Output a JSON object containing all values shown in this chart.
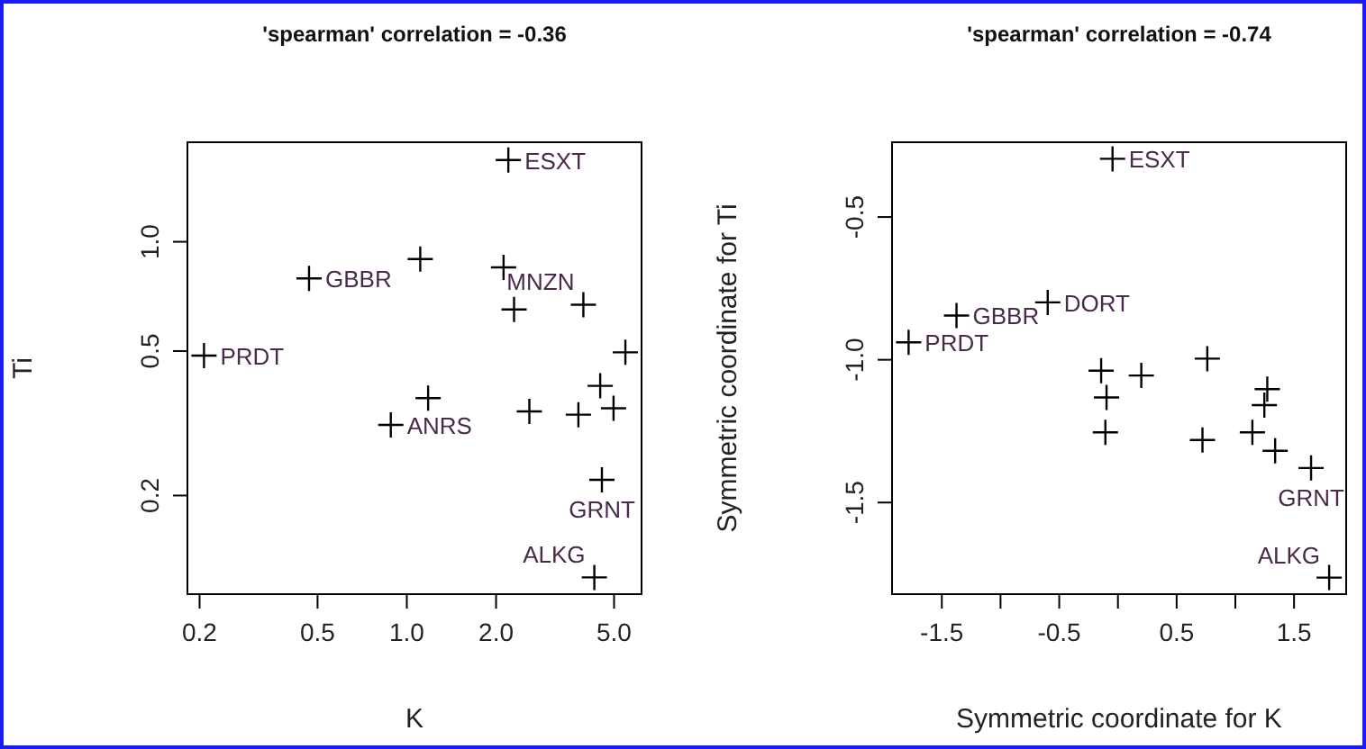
{
  "chart_data": [
    {
      "type": "scatter",
      "title": "'spearman' correlation = -0.36",
      "xlabel": "K",
      "ylabel": "Ti",
      "log": "xy",
      "marker": "cross",
      "color": "#000000",
      "x": [
        2.2,
        0.468,
        1.11,
        2.12,
        2.3,
        3.94,
        0.207,
        5.46,
        1.18,
        0.883,
        2.59,
        3.79,
        4.49,
        4.98,
        4.55,
        4.29
      ],
      "values": [
        1.68,
        0.793,
        0.896,
        0.85,
        0.651,
        0.671,
        0.486,
        0.496,
        0.371,
        0.313,
        0.341,
        0.334,
        0.401,
        0.348,
        0.221,
        0.119
      ],
      "value_labels": [
        "ESXT",
        "GBBR",
        null,
        null,
        null,
        "MNZN",
        "PRDT",
        null,
        null,
        "ANRS",
        null,
        null,
        null,
        null,
        "GRNT",
        "ALKG"
      ],
      "xlim": [
        0.182,
        6.19
      ],
      "ylim": [
        0.107,
        1.88
      ],
      "xticks": [
        {
          "value": 0.2,
          "label": "0.2"
        },
        {
          "value": 0.5,
          "label": "0.5"
        },
        {
          "value": 1,
          "label": "1.0"
        },
        {
          "value": 2,
          "label": "2.0"
        },
        {
          "value": 5,
          "label": "5.0"
        }
      ],
      "yticks": [
        {
          "value": 0.2,
          "label": "0.2"
        },
        {
          "value": 0.5,
          "label": "0.5"
        },
        {
          "value": 1,
          "label": "1.0"
        }
      ]
    },
    {
      "type": "scatter",
      "title": "'spearman' correlation = -0.74",
      "xlabel": "Symmetric coordinate for K",
      "ylabel": "Symmetric coordinate for Ti",
      "marker": "cross",
      "color": "#000000",
      "x": [
        -0.046,
        -1.375,
        -0.598,
        -1.783,
        -0.143,
        -0.097,
        -0.107,
        0.199,
        0.761,
        0.72,
        1.272,
        1.247,
        1.145,
        1.339,
        1.645,
        1.799
      ],
      "values": [
        -0.296,
        -0.845,
        -0.799,
        -0.939,
        -1.038,
        -1.132,
        -1.254,
        -1.055,
        -0.996,
        -1.281,
        -1.103,
        -1.159,
        -1.254,
        -1.319,
        -1.379,
        -1.763
      ],
      "value_labels": [
        "ESXT",
        "GBBR",
        "DORT",
        "PRDT",
        null,
        null,
        null,
        null,
        null,
        null,
        null,
        null,
        null,
        null,
        "GRNT",
        "ALKG"
      ],
      "xlim": [
        -1.924,
        1.944
      ],
      "ylim": [
        -1.821,
        -0.238
      ],
      "xticks": [
        -1.5,
        {
          "value": -1,
          "label": null
        },
        -0.5,
        {
          "value": 0,
          "label": null
        },
        0.5,
        {
          "value": 1,
          "label": null
        },
        1.5
      ],
      "yticks": [
        -1.5,
        {
          "value": -1,
          "label": "-1.0"
        },
        -0.5
      ]
    }
  ]
}
